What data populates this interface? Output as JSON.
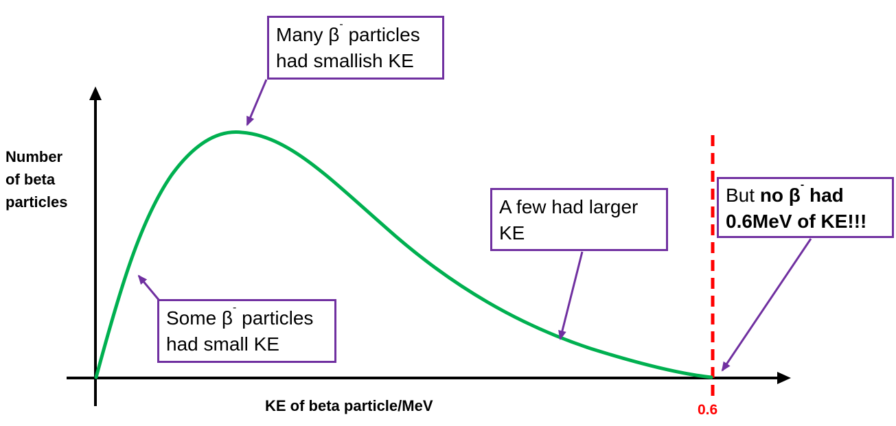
{
  "axes": {
    "y_label": [
      "Number",
      "of beta",
      "particles"
    ],
    "x_label": "KE of beta particle/MeV",
    "end_tick": "0.6"
  },
  "colors": {
    "curve": "#00b050",
    "annotation": "#7030a0",
    "cutoff": "#ff0000",
    "axis": "#000000"
  },
  "annotations": {
    "many": {
      "line1_pre": "Many β",
      "line1_sup": "-",
      "line1_post": " particles",
      "line2": "had smallish KE"
    },
    "some": {
      "line1_pre": "Some β",
      "line1_sup": "-",
      "line1_post": " particles",
      "line2": "had small KE"
    },
    "few": {
      "line1": "A few had larger",
      "line2": "KE"
    },
    "none": {
      "line1_pre": "But ",
      "line1_bold": "no β",
      "line1_sup": "-",
      "line1_bold2": " had",
      "line2": "0.6MeV of KE!!!"
    }
  }
}
